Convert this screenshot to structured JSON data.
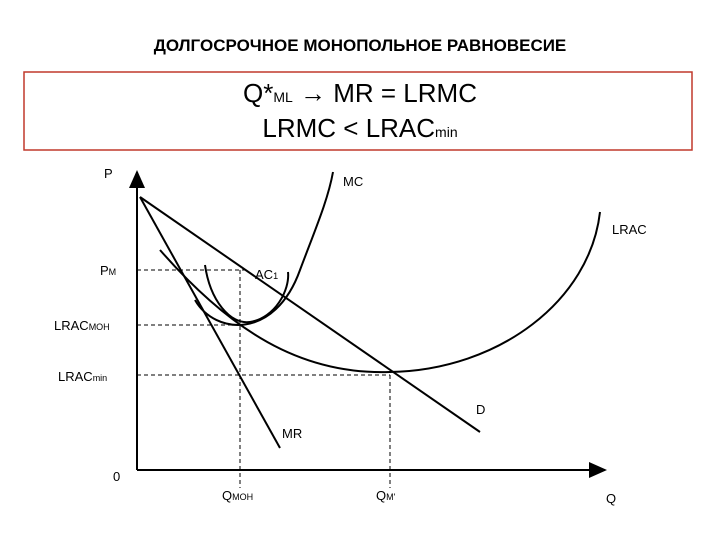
{
  "title": "ДОЛГОСРОЧНОЕ МОНОПОЛЬНОЕ РАВНОВЕСИЕ",
  "formula": {
    "line1": [
      "Q*",
      "ML",
      " → MR = LRMC"
    ],
    "line2": [
      "LRMC < LRAC",
      "min"
    ]
  },
  "axes": {
    "y": "P",
    "x": "Q",
    "origin": "0"
  },
  "y_labels": {
    "pm": [
      "P",
      "M"
    ],
    "lrac_mon": [
      "LRAC",
      "МОН"
    ],
    "lrac_min": [
      "LRAC",
      "min"
    ]
  },
  "x_labels": {
    "q_mon": [
      "Q",
      "МОН"
    ],
    "q_m": [
      "Q",
      "M'"
    ]
  },
  "curves": {
    "mc": "MC",
    "lrac": "LRAC",
    "ac1": [
      "AC",
      "1"
    ],
    "d": "D",
    "mr": "MR"
  }
}
